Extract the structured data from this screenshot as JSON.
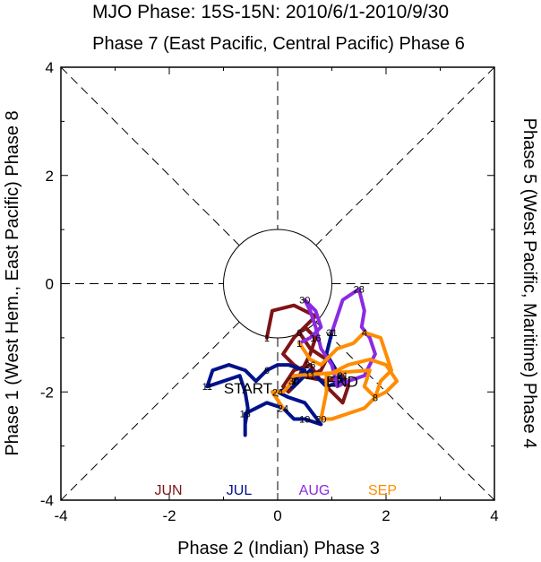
{
  "chart_data": {
    "type": "line",
    "title": "MJO Phase: 15S-15N: 2010/6/1-2010/9/30",
    "top_label": "Phase 7 (East Pacific, Central Pacific) Phase 6",
    "bottom_label": "Phase 2 (Indian) Phase 3",
    "left_label": "Phase 1 (West Hem., East Pacific) Phase 8",
    "right_label": "Phase 5 (West Pacific, Maritime) Phase 4",
    "xlim": [
      -4,
      4
    ],
    "ylim": [
      -4,
      4
    ],
    "x_ticks": [
      "-4",
      "-2",
      "0",
      "2",
      "4"
    ],
    "y_ticks": [
      "4",
      "2",
      "0",
      "-2",
      "-4"
    ],
    "unit_circle_radius": 1,
    "start_label": "START",
    "end_label": "END",
    "series": [
      {
        "name": "JUN",
        "color": "#7f1416",
        "points": [
          {
            "x": -0.2,
            "y": -1.0,
            "label": "1"
          },
          {
            "x": -0.1,
            "y": -0.5
          },
          {
            "x": 0.3,
            "y": -0.4
          },
          {
            "x": 0.5,
            "y": -0.5
          },
          {
            "x": 0.7,
            "y": -0.6
          },
          {
            "x": 0.4,
            "y": -0.9,
            "label": "6"
          },
          {
            "x": 0.6,
            "y": -1.2
          },
          {
            "x": 0.9,
            "y": -1.4
          },
          {
            "x": 0.8,
            "y": -1.6
          },
          {
            "x": 0.6,
            "y": -1.7,
            "label": "11"
          },
          {
            "x": 0.3,
            "y": -1.5
          },
          {
            "x": 0.1,
            "y": -1.3
          },
          {
            "x": 0.3,
            "y": -1.0
          },
          {
            "x": 0.5,
            "y": -0.8
          },
          {
            "x": 0.7,
            "y": -1.0,
            "label": "16"
          },
          {
            "x": 0.6,
            "y": -1.3
          },
          {
            "x": 0.5,
            "y": -1.5
          },
          {
            "x": 0.4,
            "y": -1.7
          },
          {
            "x": 0.9,
            "y": -1.8
          },
          {
            "x": 1.2,
            "y": -1.7,
            "label": "21"
          },
          {
            "x": 1.3,
            "y": -1.9
          },
          {
            "x": 1.2,
            "y": -2.2
          },
          {
            "x": 1.0,
            "y": -2.0
          },
          {
            "x": 0.8,
            "y": -1.8
          },
          {
            "x": 0.6,
            "y": -1.5,
            "label": "26"
          },
          {
            "x": 0.3,
            "y": -1.6
          },
          {
            "x": 0.1,
            "y": -1.9
          },
          {
            "x": 0.2,
            "y": -2.0
          },
          {
            "x": 0.3,
            "y": -1.9
          },
          {
            "x": 0.3,
            "y": -1.8,
            "label": "30"
          }
        ]
      },
      {
        "name": "JUL",
        "color": "#00128a",
        "points": [
          {
            "x": 0.3,
            "y": -1.8,
            "label": "1"
          },
          {
            "x": 0.4,
            "y": -1.7
          },
          {
            "x": 0.5,
            "y": -1.6
          },
          {
            "x": 0.2,
            "y": -1.5
          },
          {
            "x": 0.0,
            "y": -1.5
          },
          {
            "x": -0.2,
            "y": -1.6,
            "label": "6"
          },
          {
            "x": -0.4,
            "y": -1.8
          },
          {
            "x": -0.6,
            "y": -1.6
          },
          {
            "x": -0.9,
            "y": -1.5
          },
          {
            "x": -1.2,
            "y": -1.6
          },
          {
            "x": -1.3,
            "y": -1.9,
            "label": "11"
          },
          {
            "x": -0.7,
            "y": -1.7
          },
          {
            "x": -0.6,
            "y": -2.0
          },
          {
            "x": -0.55,
            "y": -2.3
          },
          {
            "x": -0.6,
            "y": -2.6
          },
          {
            "x": -0.6,
            "y": -2.8
          },
          {
            "x": -0.6,
            "y": -2.4,
            "label": "16"
          },
          {
            "x": -0.2,
            "y": -2.2
          },
          {
            "x": 0.1,
            "y": -2.3
          },
          {
            "x": 0.3,
            "y": -2.5
          },
          {
            "x": 0.5,
            "y": -2.5,
            "label": "19"
          },
          {
            "x": 0.8,
            "y": -2.6
          },
          {
            "x": 0.5,
            "y": -2.2
          },
          {
            "x": 0.2,
            "y": -2.1
          },
          {
            "x": 0.0,
            "y": -2.0,
            "label": "24"
          },
          {
            "x": 0.3,
            "y": -1.9
          },
          {
            "x": 0.6,
            "y": -1.6
          },
          {
            "x": 0.9,
            "y": -1.9
          },
          {
            "x": 1.2,
            "y": -1.8
          },
          {
            "x": 0.9,
            "y": -1.3
          },
          {
            "x": 1.0,
            "y": -0.9,
            "label": "31"
          }
        ]
      },
      {
        "name": "AUG",
        "color": "#8a2be2",
        "points": [
          {
            "x": 1.0,
            "y": -0.9,
            "label": "1"
          },
          {
            "x": 1.2,
            "y": -0.3
          },
          {
            "x": 1.5,
            "y": -0.1,
            "label": "28"
          },
          {
            "x": 1.6,
            "y": -0.5
          },
          {
            "x": 1.55,
            "y": -0.8
          },
          {
            "x": 1.7,
            "y": -1.0
          },
          {
            "x": 1.8,
            "y": -1.3
          },
          {
            "x": 1.7,
            "y": -1.5
          },
          {
            "x": 1.6,
            "y": -1.7
          },
          {
            "x": 1.3,
            "y": -1.8
          },
          {
            "x": 1.1,
            "y": -1.9
          },
          {
            "x": 1.0,
            "y": -1.5
          },
          {
            "x": 0.8,
            "y": -1.2
          },
          {
            "x": 0.7,
            "y": -0.8
          },
          {
            "x": 0.6,
            "y": -0.5
          },
          {
            "x": 0.5,
            "y": -0.3,
            "label": "30"
          },
          {
            "x": 0.7,
            "y": -0.5
          },
          {
            "x": 0.8,
            "y": -0.8
          },
          {
            "x": 0.6,
            "y": -1.0
          },
          {
            "x": 0.4,
            "y": -1.1
          }
        ]
      },
      {
        "name": "SEP",
        "color": "#ff8c00",
        "points": [
          {
            "x": 0.4,
            "y": -1.1,
            "label": "1"
          },
          {
            "x": 0.6,
            "y": -1.4
          },
          {
            "x": 0.8,
            "y": -1.5
          },
          {
            "x": 1.1,
            "y": -1.2
          },
          {
            "x": 1.4,
            "y": -1.1
          },
          {
            "x": 1.6,
            "y": -0.9,
            "label": "4"
          },
          {
            "x": 1.9,
            "y": -1.0
          },
          {
            "x": 2.0,
            "y": -1.3
          },
          {
            "x": 2.1,
            "y": -1.6
          },
          {
            "x": 1.9,
            "y": -1.8
          },
          {
            "x": 1.8,
            "y": -2.1,
            "label": "8"
          },
          {
            "x": 1.6,
            "y": -2.3
          },
          {
            "x": 1.3,
            "y": -2.4
          },
          {
            "x": 1.0,
            "y": -2.5
          },
          {
            "x": 0.8,
            "y": -2.5,
            "label": "20"
          },
          {
            "x": 0.9,
            "y": -2.0
          },
          {
            "x": 0.9,
            "y": -1.7
          },
          {
            "x": 1.3,
            "y": -1.5
          },
          {
            "x": 1.7,
            "y": -1.4
          },
          {
            "x": 2.0,
            "y": -1.5
          },
          {
            "x": 2.2,
            "y": -1.8
          },
          {
            "x": 2.0,
            "y": -2.0
          },
          {
            "x": 1.8,
            "y": -2.1
          },
          {
            "x": 1.6,
            "y": -1.9
          },
          {
            "x": 1.7,
            "y": -1.6
          },
          {
            "x": 0.3,
            "y": -1.7
          },
          {
            "x": 0.2,
            "y": -1.9
          },
          {
            "x": 0.1,
            "y": -2.0
          },
          {
            "x": -0.1,
            "y": -2.0
          },
          {
            "x": 0.1,
            "y": -2.3,
            "label": "24"
          }
        ]
      }
    ]
  }
}
